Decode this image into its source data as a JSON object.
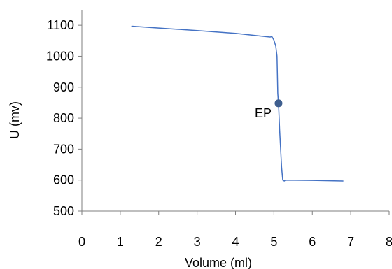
{
  "chart_data": {
    "type": "line",
    "title": "",
    "xlabel": "Volume (ml)",
    "ylabel": "U (mv)",
    "xlim": [
      0,
      8
    ],
    "ylim": [
      500,
      1150
    ],
    "x_ticks": [
      "0",
      "1",
      "2",
      "3",
      "4",
      "5",
      "6",
      "7",
      "8"
    ],
    "y_ticks": [
      "500",
      "600",
      "700",
      "800",
      "900",
      "1000",
      "1100"
    ],
    "grid": false,
    "legend": "none",
    "series": [
      {
        "color": "#4472c4",
        "points": [
          [
            1.3,
            1097
          ],
          [
            2.0,
            1091
          ],
          [
            3.0,
            1083
          ],
          [
            4.0,
            1074
          ],
          [
            4.9,
            1062
          ],
          [
            4.95,
            1063
          ],
          [
            5.0,
            1052
          ],
          [
            5.05,
            1032
          ],
          [
            5.08,
            1000
          ],
          [
            5.1,
            880
          ],
          [
            5.12,
            845
          ],
          [
            5.15,
            760
          ],
          [
            5.2,
            640
          ],
          [
            5.23,
            600
          ],
          [
            5.27,
            597
          ],
          [
            5.3,
            600
          ],
          [
            6.0,
            599
          ],
          [
            6.8,
            597
          ]
        ]
      }
    ],
    "annotations": [
      {
        "text": "EP",
        "x": 5.12,
        "y": 848,
        "marker_color": "#3f5f8f"
      }
    ]
  }
}
